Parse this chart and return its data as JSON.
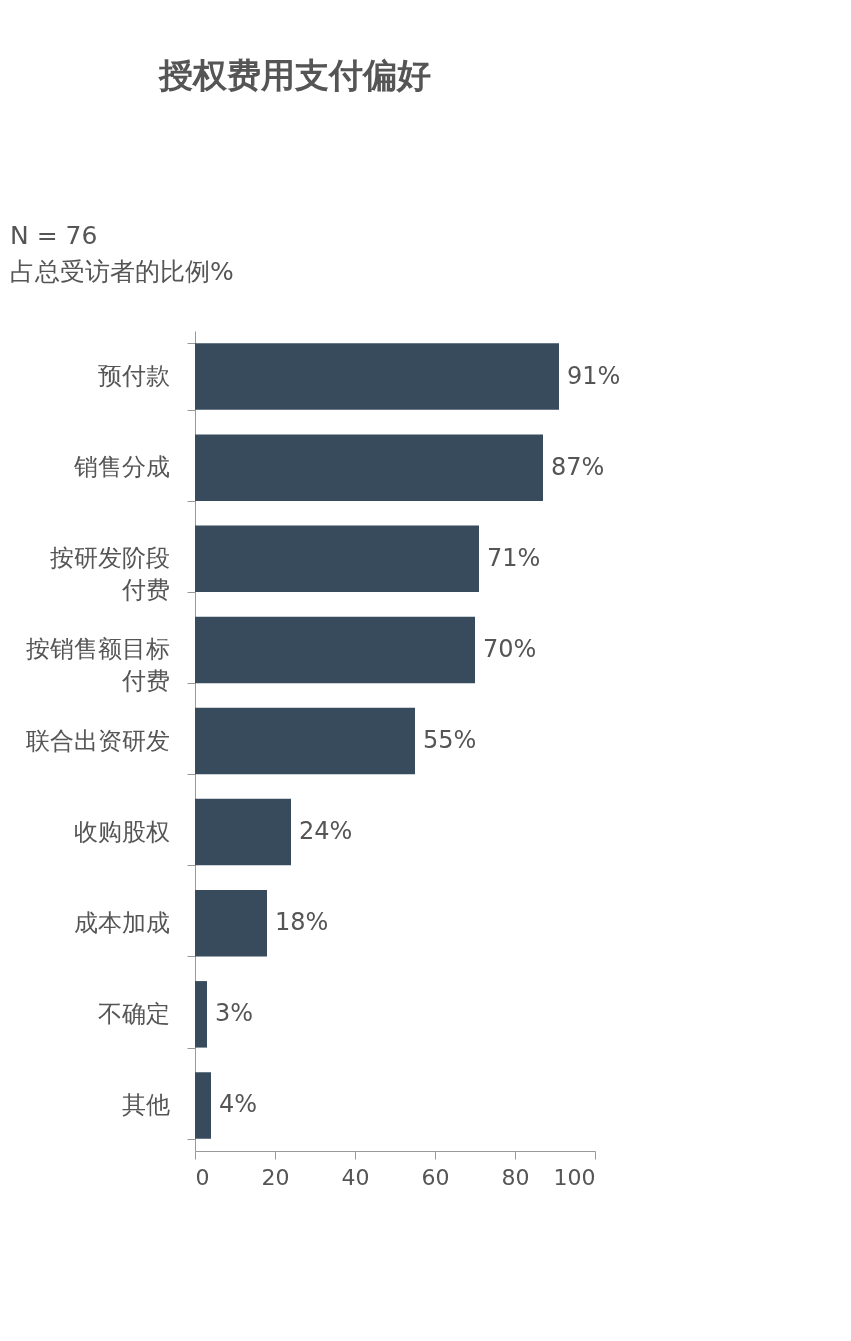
{
  "chart_data": {
    "type": "bar",
    "orientation": "horizontal",
    "title": "授权费用支付偏好",
    "subtitle": "N = 76",
    "annotations": [
      "占总受访者的比例%"
    ],
    "categories": [
      "预付款",
      "销售分成",
      "按研发阶段付费",
      "按销售额目标付费",
      "联合出资研发",
      "收购股权",
      "成本加成",
      "不确定",
      "其他"
    ],
    "series": [
      {
        "color": "#374b5c",
        "values": [
          91,
          87,
          71,
          70,
          55,
          24,
          18,
          3,
          4
        ]
      }
    ],
    "value_labels": [
      "91%",
      "87%",
      "71%",
      "70%",
      "55%",
      "24%",
      "18%",
      "3%",
      "4%"
    ],
    "xlim": [
      0,
      100
    ],
    "xticks": [
      0,
      20,
      40,
      60,
      80,
      100
    ],
    "grid": false
  }
}
